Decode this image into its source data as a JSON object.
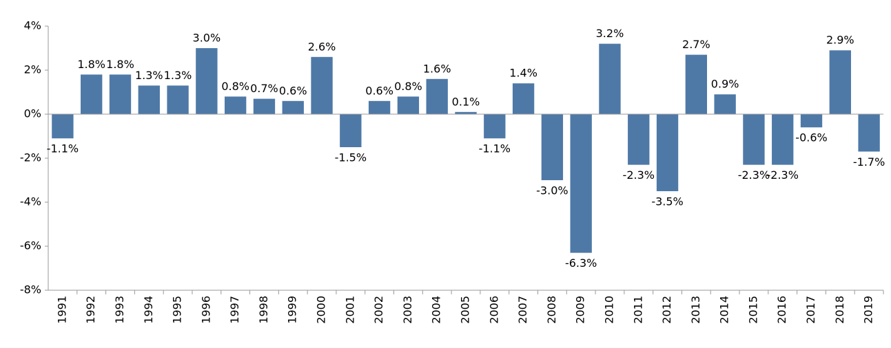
{
  "chart_data": {
    "type": "bar",
    "categories": [
      "1991",
      "1992",
      "1993",
      "1994",
      "1995",
      "1996",
      "1997",
      "1998",
      "1999",
      "2000",
      "2001",
      "2002",
      "2003",
      "2004",
      "2005",
      "2006",
      "2007",
      "2008",
      "2009",
      "2010",
      "2011",
      "2012",
      "2013",
      "2014",
      "2015",
      "2016",
      "2017",
      "2018",
      "2019"
    ],
    "values": [
      -1.1,
      1.8,
      1.8,
      1.3,
      1.3,
      3.0,
      0.8,
      0.7,
      0.6,
      2.6,
      -1.5,
      0.6,
      0.8,
      1.6,
      0.1,
      -1.1,
      1.4,
      -3.0,
      -6.3,
      3.2,
      -2.3,
      -3.5,
      2.7,
      0.9,
      -2.3,
      -2.3,
      -0.6,
      2.9,
      -1.7
    ],
    "value_labels": [
      "-1.1%",
      "1.8%",
      "1.8%",
      "1.3%",
      "1.3%",
      "3.0%",
      "0.8%",
      "0.7%",
      "0.6%",
      "2.6%",
      "-1.5%",
      "0.6%",
      "0.8%",
      "1.6%",
      "0.1%",
      "-1.1%",
      "1.4%",
      "-3.0%",
      "-6.3%",
      "3.2%",
      "-2.3%",
      "-3.5%",
      "2.7%",
      "0.9%",
      "-2.3%",
      "-2.3%",
      "-0.6%",
      "2.9%",
      "-1.7%"
    ],
    "color": "#4e79a7",
    "ylim": [
      -8,
      4
    ],
    "yticks": [
      {
        "value": -8,
        "label": "-8%"
      },
      {
        "value": -6,
        "label": "-6%"
      },
      {
        "value": -4,
        "label": "-4%"
      },
      {
        "value": -2,
        "label": "-2%"
      },
      {
        "value": 0,
        "label": "0%"
      },
      {
        "value": 2,
        "label": "2%"
      },
      {
        "value": 4,
        "label": "4%"
      }
    ],
    "grid": false
  }
}
